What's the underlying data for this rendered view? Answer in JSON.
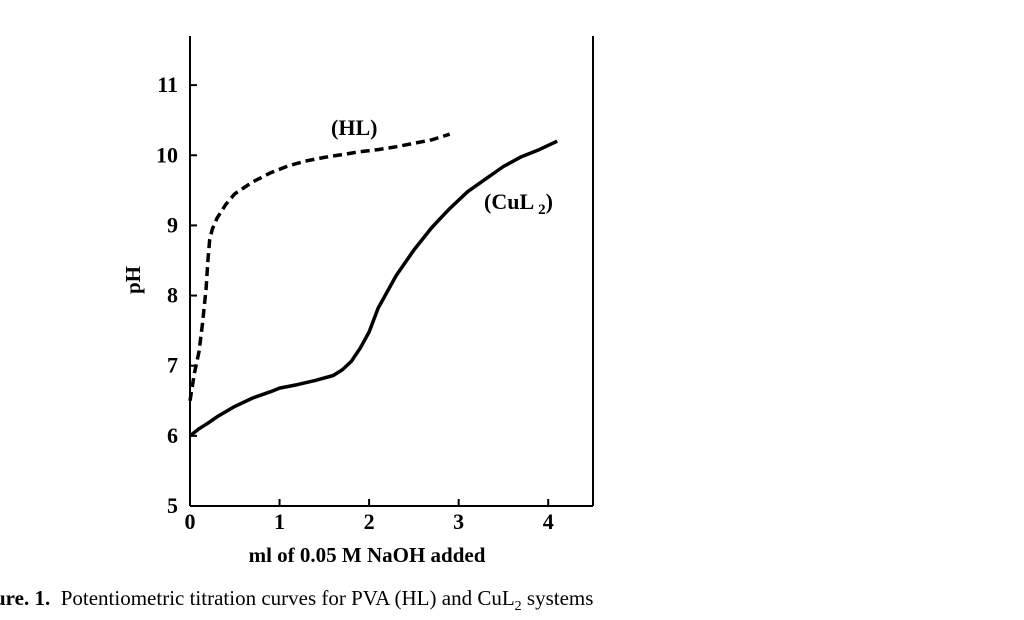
{
  "caption": {
    "label": "ure. 1.",
    "text_before": "Potentiometric titration curves for PVA (HL) and CuL",
    "subscript": "2",
    "text_after": " systems"
  },
  "chart_data": {
    "type": "line",
    "title": "",
    "xlabel": "ml of 0.05 M NaOH added",
    "ylabel": "pH",
    "xlim": [
      0,
      4.5
    ],
    "ylim": [
      5,
      11.7
    ],
    "xticks": [
      0,
      1,
      2,
      3,
      4
    ],
    "yticks": [
      5,
      6,
      7,
      8,
      9,
      10,
      11
    ],
    "grid": false,
    "legend": "none",
    "series": [
      {
        "name": "(HL)",
        "label_main": "(HL)",
        "style": "dashed",
        "color": "#000000",
        "x": [
          0.0,
          0.05,
          0.1,
          0.14,
          0.18,
          0.2,
          0.22,
          0.25,
          0.3,
          0.4,
          0.5,
          0.7,
          0.9,
          1.1,
          1.3,
          1.5,
          1.7,
          1.9,
          2.1,
          2.3,
          2.5,
          2.7,
          2.9
        ],
        "y": [
          6.5,
          6.9,
          7.2,
          7.6,
          8.1,
          8.5,
          8.8,
          8.95,
          9.1,
          9.3,
          9.45,
          9.62,
          9.75,
          9.85,
          9.92,
          9.97,
          10.01,
          10.05,
          10.08,
          10.12,
          10.17,
          10.22,
          10.3
        ]
      },
      {
        "name": "(CuL2)",
        "label_main": "(CuL",
        "label_sub": "2",
        "label_end": ")",
        "style": "solid",
        "color": "#000000",
        "x": [
          0.0,
          0.1,
          0.2,
          0.3,
          0.5,
          0.7,
          0.9,
          1.0,
          1.2,
          1.4,
          1.6,
          1.7,
          1.8,
          1.9,
          2.0,
          2.1,
          2.3,
          2.5,
          2.7,
          2.9,
          3.1,
          3.3,
          3.5,
          3.7,
          3.9,
          4.1
        ],
        "y": [
          6.0,
          6.1,
          6.18,
          6.27,
          6.42,
          6.54,
          6.63,
          6.68,
          6.73,
          6.79,
          6.86,
          6.94,
          7.06,
          7.25,
          7.48,
          7.82,
          8.28,
          8.65,
          8.97,
          9.24,
          9.48,
          9.66,
          9.84,
          9.98,
          10.08,
          10.2
        ]
      }
    ]
  }
}
